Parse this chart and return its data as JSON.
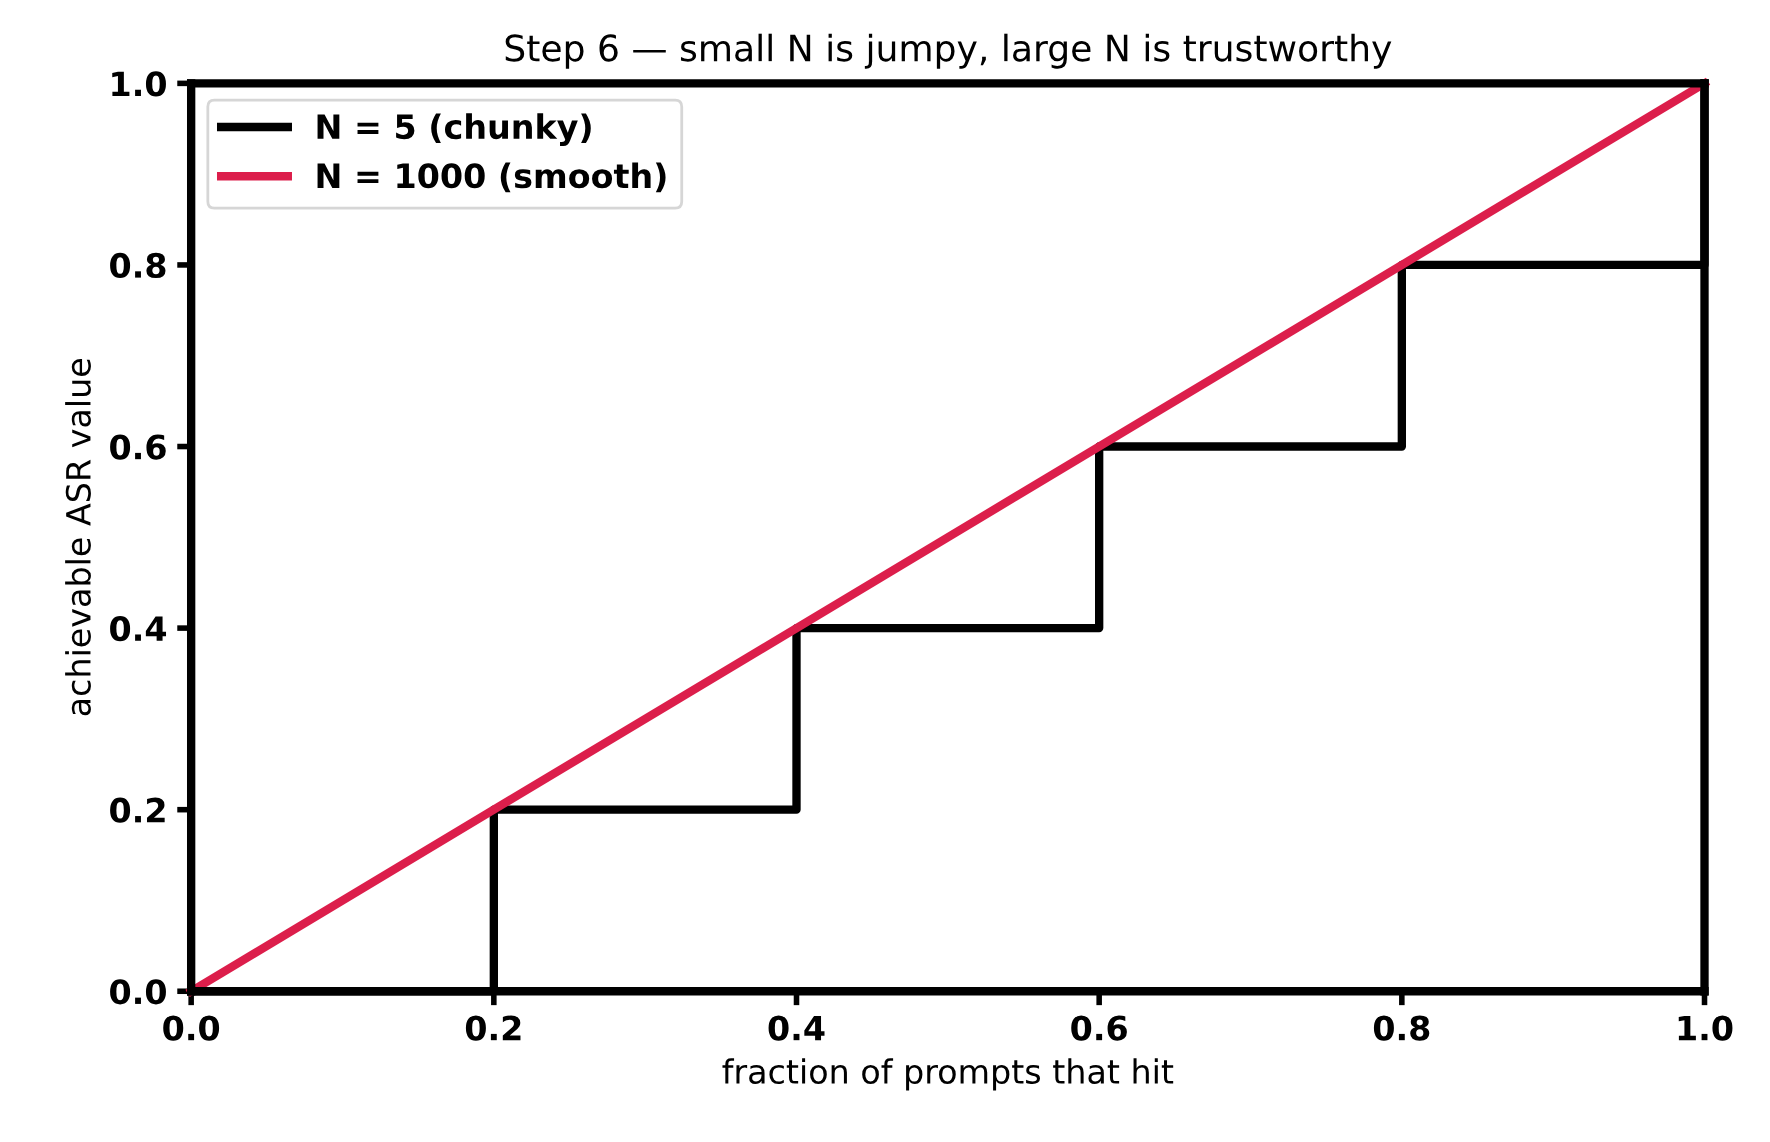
{
  "chart_data": {
    "type": "line",
    "title": "Step 6 — small N is jumpy, large N is trustworthy",
    "xlabel": "fraction of prompts that hit",
    "ylabel": "achievable ASR value",
    "series": [
      {
        "name": "N = 5 (chunky)",
        "type": "step",
        "color": "#000000",
        "x": [
          0,
          0.2,
          0.4,
          0.6,
          0.8,
          1.0
        ],
        "values": [
          0,
          0.2,
          0.4,
          0.6,
          0.8,
          1.0
        ]
      },
      {
        "name": "N = 1000 (smooth)",
        "color": "#dc1e4b",
        "x": [
          0,
          1.0
        ],
        "values": [
          0,
          1.0
        ]
      }
    ],
    "xlim": [
      0,
      1.0
    ],
    "ylim": [
      0,
      1.0
    ],
    "xticks": [
      {
        "value": 0,
        "label": "0.0"
      },
      0.2,
      0.4,
      0.6,
      0.8,
      {
        "value": 1,
        "label": "1.0"
      }
    ],
    "yticks": [
      {
        "value": 0,
        "label": "0.0"
      },
      0.2,
      0.4,
      0.6,
      0.8,
      {
        "value": 1,
        "label": "1.0"
      }
    ],
    "grid": false,
    "legend": "top left",
    "marker": "none",
    "line_style": "solid"
  }
}
